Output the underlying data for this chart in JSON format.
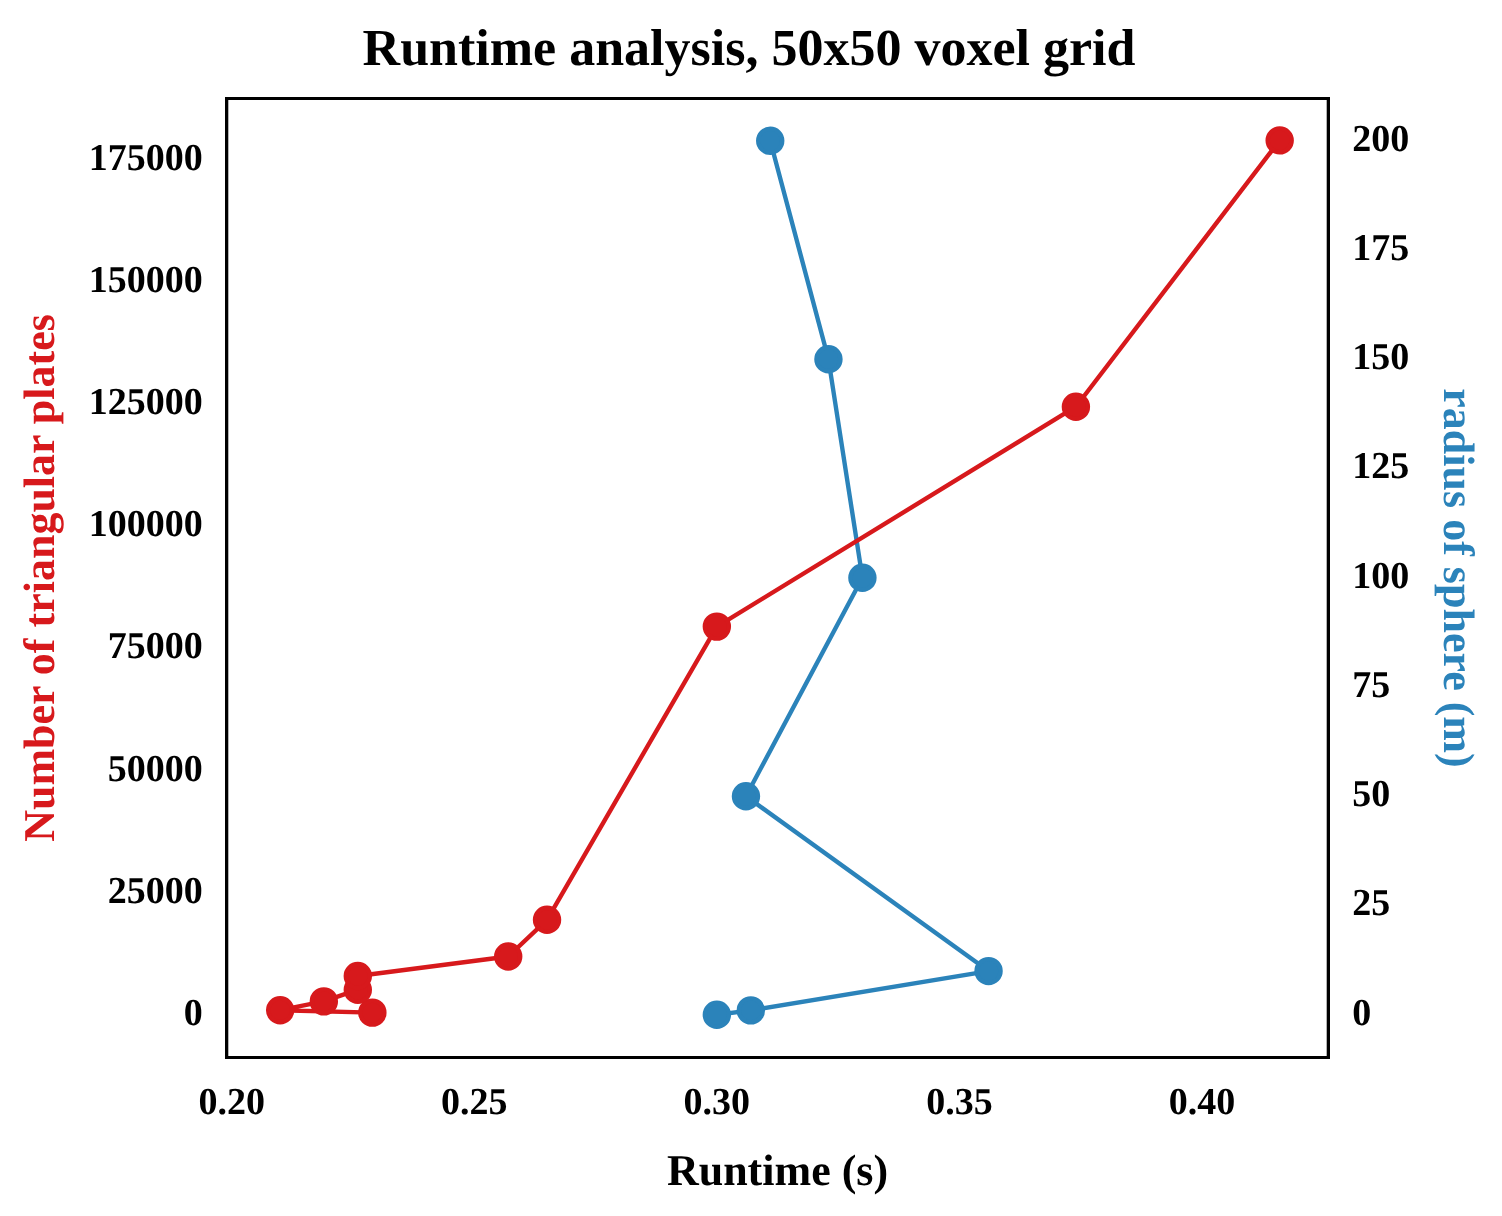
{
  "chart_data": {
    "type": "line",
    "title": "Runtime analysis, 50x50 voxel grid",
    "xlabel": "Runtime (s)",
    "ylabel": "Number of triangular plates",
    "y2label": "radius of sphere (m)",
    "series": [
      {
        "color": "#d7191c",
        "x": [
          0.229,
          0.21,
          0.219,
          0.226,
          0.226,
          0.257,
          0.265,
          0.3,
          0.374,
          0.416
        ],
        "values": [
          500,
          1000,
          2800,
          5200,
          8000,
          12000,
          19500,
          79500,
          124500,
          179000
        ]
      },
      {
        "color": "#2b83ba",
        "axis": "y2",
        "x": [
          0.3,
          0.307,
          0.356,
          0.306,
          0.33,
          0.323,
          0.311
        ],
        "values": [
          0,
          1,
          10,
          50,
          100,
          150,
          200
        ]
      }
    ],
    "xlim": [
      0.199,
      0.426
    ],
    "xticks": [
      {
        "value": 0.2,
        "label": "0.20"
      },
      {
        "value": 0.25,
        "label": "0.25"
      },
      {
        "value": 0.3,
        "label": "0.30"
      },
      {
        "value": 0.35,
        "label": "0.35"
      },
      {
        "value": 0.4,
        "label": "0.40"
      }
    ],
    "ylim": [
      -8700,
      187600
    ],
    "yticks": [
      0,
      25000,
      50000,
      75000,
      100000,
      125000,
      150000,
      175000
    ],
    "y2lim": [
      -9.8,
      209.7
    ],
    "y2ticks": [
      0,
      25,
      50,
      75,
      100,
      125,
      150,
      175,
      200
    ],
    "grid": false,
    "legend": false,
    "marker": "circle",
    "line_style": "solid"
  }
}
